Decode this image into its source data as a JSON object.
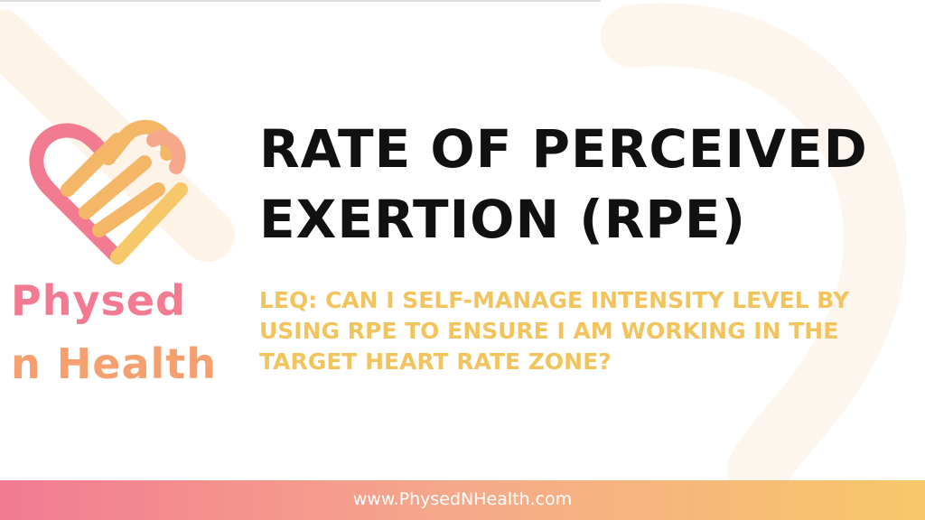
{
  "title": "RATE OF PERCEIVED EXERTION (RPE)",
  "subtitle": "LEQ: CAN I SELF-MANAGE INTENSITY LEVEL BY USING RPE TO ENSURE I AM WORKING IN THE TARGET HEART RATE ZONE?",
  "logo": {
    "line1": "Physed",
    "line2": "n Health"
  },
  "footer": "www.PhysedNHealth.com"
}
